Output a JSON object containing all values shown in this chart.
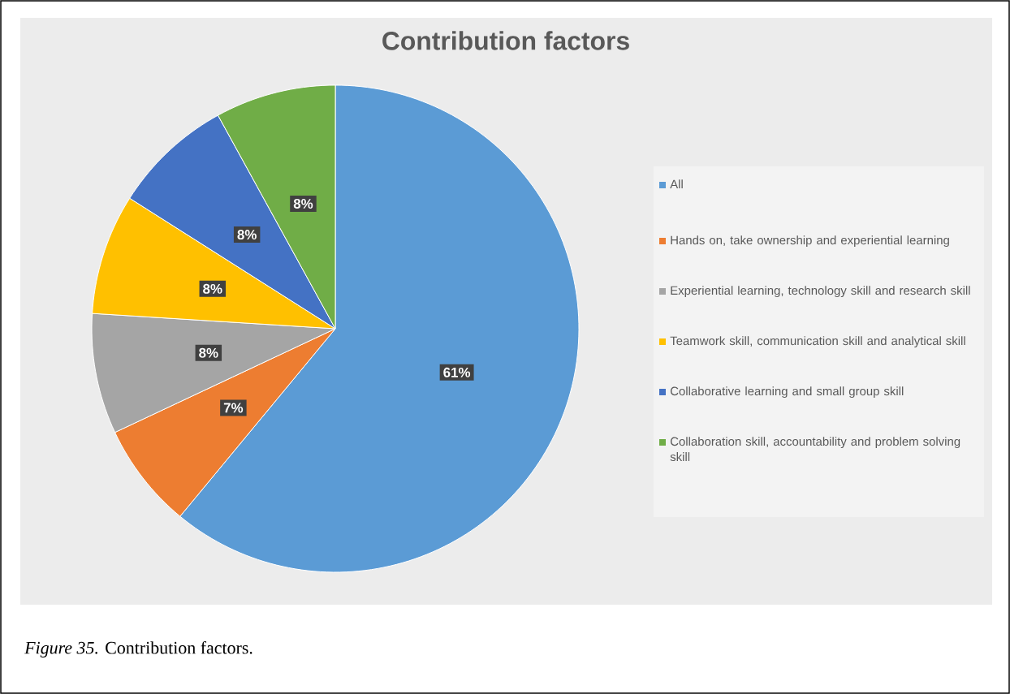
{
  "chart_data": {
    "type": "pie",
    "title": "Contribution factors",
    "categories": [
      "All",
      "Hands on, take ownership and experiential learning",
      "Experiential learning, technology skill and research skill",
      "Teamwork skill, communication skill and analytical skill",
      "Collaborative learning and small group skill",
      "Collaboration skill, accountability and problem solving skill"
    ],
    "values": [
      61,
      7,
      8,
      8,
      8,
      8
    ],
    "value_labels": [
      "61%",
      "7%",
      "8%",
      "8%",
      "8%",
      "8%"
    ],
    "colors": [
      "#5b9bd5",
      "#ed7d31",
      "#a5a5a5",
      "#ffc000",
      "#4472c4",
      "#70ad47"
    ],
    "legend": "right",
    "annotations": [
      "*Figure 35.* Contribution factors."
    ]
  }
}
